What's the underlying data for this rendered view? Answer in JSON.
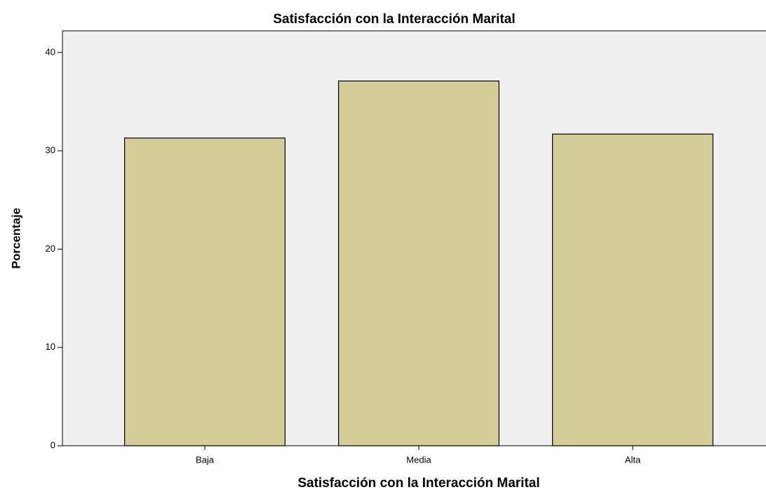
{
  "chart_data": {
    "type": "bar",
    "title": "Satisfacción con la Interacción Marital",
    "xlabel": "Satisfacción con la Interacción Marital",
    "ylabel": "Porcentaje",
    "categories": [
      "Baja",
      "Media",
      "Alta"
    ],
    "values": [
      31.3,
      37.1,
      31.7
    ],
    "color": "#d3ce97",
    "ylim": [
      0,
      42.2
    ],
    "yticks": [
      0,
      10,
      20,
      30,
      40
    ],
    "grid": false
  }
}
